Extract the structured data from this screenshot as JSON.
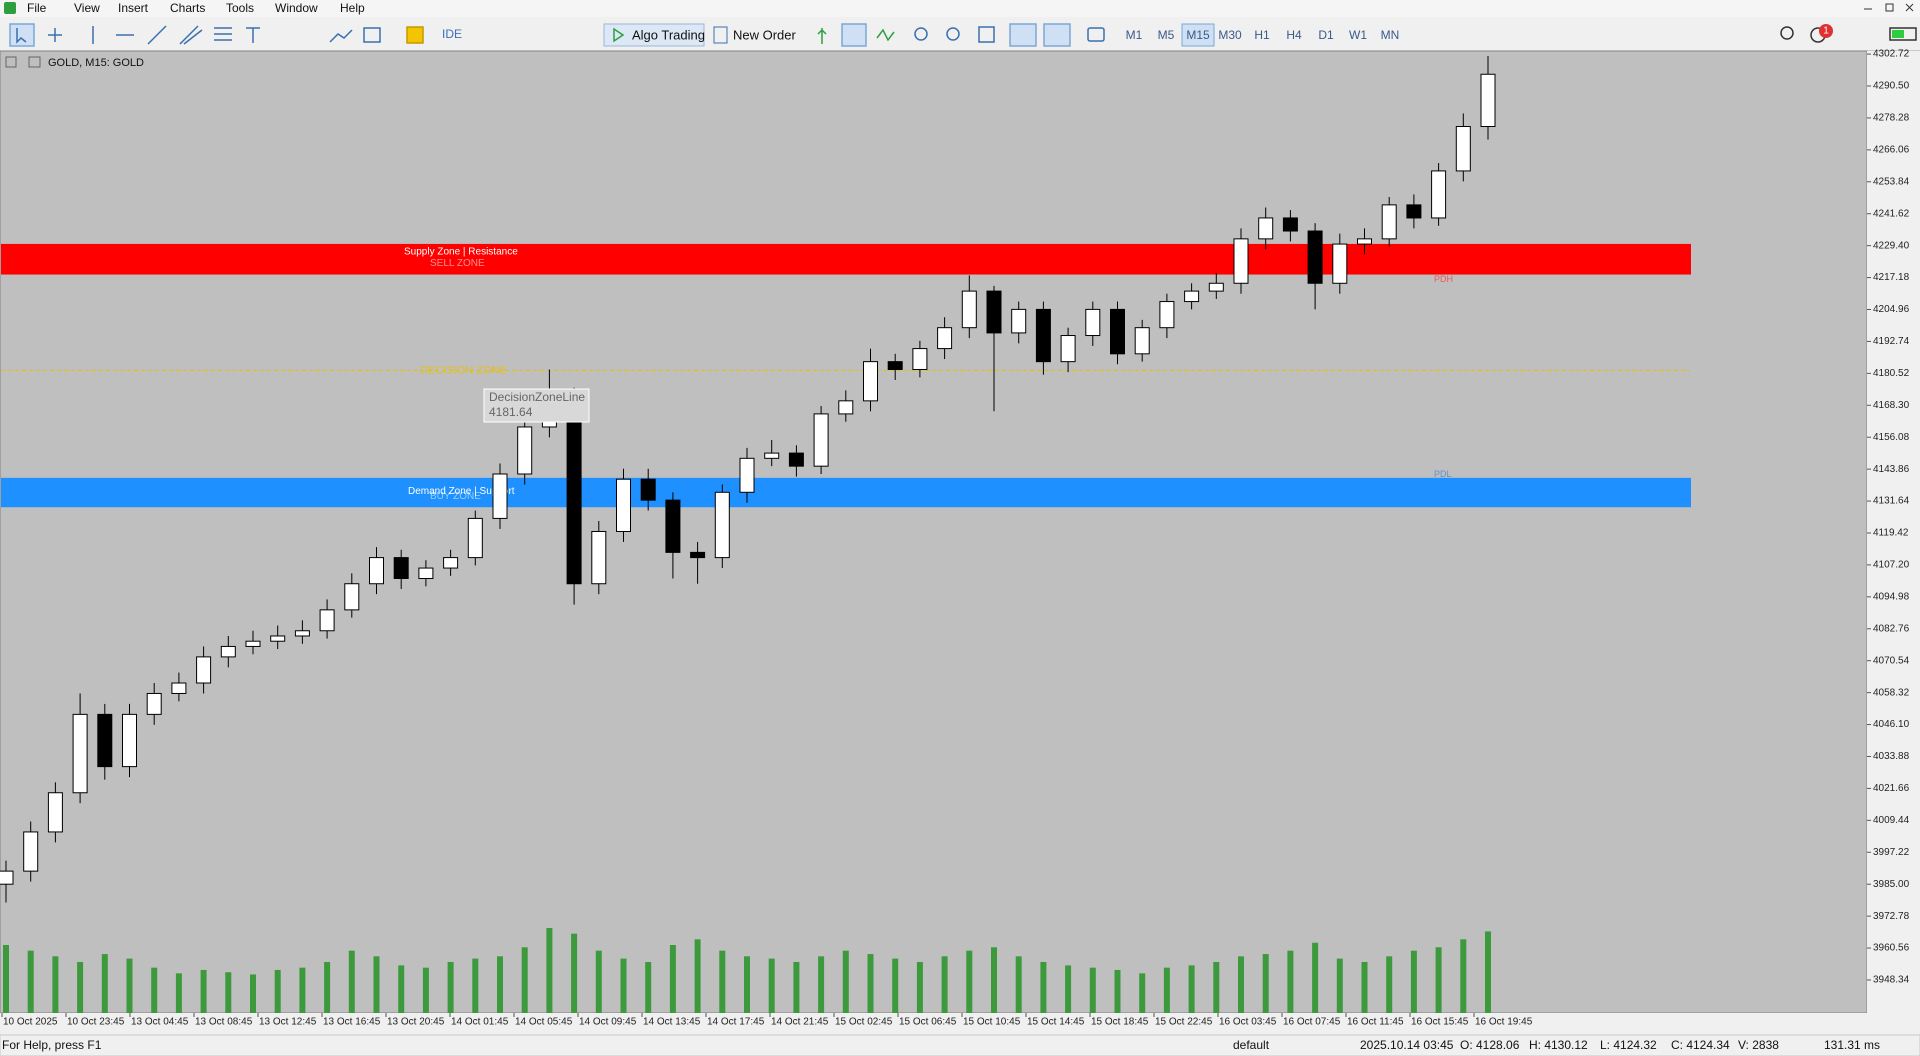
{
  "menu": [
    "File",
    "View",
    "Insert",
    "Charts",
    "Tools",
    "Window",
    "Help"
  ],
  "toolbar": {
    "ide": "IDE",
    "algo_trading": "Algo Trading",
    "new_order": "New Order",
    "timeframes": [
      "M1",
      "M5",
      "M15",
      "M30",
      "H1",
      "H4",
      "D1",
      "W1",
      "MN"
    ],
    "active_timeframe": "M15",
    "notification_count": "1"
  },
  "chart_header": "GOLD, M15:  GOLD",
  "chart_data": {
    "type": "candlestick",
    "ylim": [
      3935.7,
      4303.9
    ],
    "yticks": [
      4302.72,
      {
        "value": 4290.5,
        "label": "4290.50"
      },
      4278.28,
      4266.06,
      4253.84,
      4241.62,
      {
        "value": 4229.4,
        "label": "4229.40"
      },
      4217.18,
      4204.96,
      4192.74,
      4180.52,
      {
        "value": 4168.3,
        "label": "4168.30"
      },
      4156.08,
      4143.86,
      4131.64,
      4119.42,
      {
        "value": 4107.2,
        "label": "4107.20"
      },
      4094.98,
      4082.76,
      4070.54,
      4058.32,
      {
        "value": 4046.1,
        "label": "4046.10"
      },
      4033.88,
      4021.66,
      4009.44,
      3997.22,
      {
        "value": 3985,
        "label": "3985.00"
      },
      3972.78,
      3960.56,
      3948.34
    ],
    "time_labels": [
      "10 Oct 2025",
      "10 Oct 23:45",
      "13 Oct 04:45",
      "13 Oct 08:45",
      "13 Oct 12:45",
      "13 Oct 16:45",
      "13 Oct 20:45",
      "14 Oct 01:45",
      "14 Oct 05:45",
      "14 Oct 09:45",
      "14 Oct 13:45",
      "14 Oct 17:45",
      "14 Oct 21:45",
      "15 Oct 02:45",
      "15 Oct 06:45",
      "15 Oct 10:45",
      "15 Oct 14:45",
      "15 Oct 18:45",
      "15 Oct 22:45",
      "16 Oct 03:45",
      "16 Oct 07:45",
      "16 Oct 11:45",
      "16 Oct 15:45",
      "16 Oct 19:45"
    ],
    "grid": false,
    "up_color": "#ffffff",
    "down_color": "#000000",
    "volume_color": "#3c9a3c",
    "open": [
      3985,
      3990,
      4005,
      4020,
      4050,
      4030,
      4050,
      4058,
      4062,
      4072,
      4076,
      4078,
      4080,
      4082,
      4090,
      4100,
      4110,
      4102,
      4106,
      4110,
      4125,
      4142,
      4160,
      4172,
      4100,
      4120,
      4140,
      4132,
      4112,
      4110,
      4135,
      4148,
      4150,
      4145,
      4165,
      4170,
      4185,
      4182,
      4190,
      4198,
      4212,
      4196,
      4205,
      4185,
      4195,
      4205,
      4188,
      4198,
      4208,
      4212,
      4215,
      4232,
      4240,
      4235,
      4215,
      4230,
      4232,
      4245,
      4240,
      4258,
      4275
    ],
    "high": [
      3994,
      4009,
      4024,
      4058,
      4054,
      4054,
      4062,
      4066,
      4076,
      4080,
      4082,
      4084,
      4086,
      4094,
      4104,
      4114,
      4113,
      4109,
      4113,
      4128,
      4146,
      4164,
      4182,
      4175,
      4124,
      4144,
      4144,
      4135,
      4116,
      4138,
      4152,
      4155,
      4153,
      4168,
      4174,
      4190,
      4188,
      4193,
      4202,
      4218,
      4214,
      4208,
      4208,
      4198,
      4208,
      4208,
      4201,
      4211,
      4215,
      4219,
      4236,
      4244,
      4243,
      4238,
      4234,
      4236,
      4248,
      4249,
      4261,
      4280,
      4302
    ],
    "low": [
      3978,
      3986,
      4001,
      4016,
      4025,
      4026,
      4046,
      4055,
      4058,
      4068,
      4073,
      4075,
      4077,
      4079,
      4087,
      4096,
      4098,
      4099,
      4103,
      4107,
      4121,
      4138,
      4156,
      4092,
      4096,
      4116,
      4128,
      4102,
      4100,
      4106,
      4131,
      4145,
      4141,
      4142,
      4162,
      4166,
      4178,
      4179,
      4186,
      4194,
      4166,
      4192,
      4180,
      4181,
      4191,
      4184,
      4185,
      4194,
      4205,
      4209,
      4211,
      4228,
      4231,
      4205,
      4211,
      4226,
      4229,
      4236,
      4237,
      4254,
      4270
    ],
    "close": [
      3990,
      4005,
      4020,
      4050,
      4030,
      4050,
      4058,
      4062,
      4072,
      4076,
      4078,
      4080,
      4082,
      4090,
      4100,
      4110,
      4102,
      4106,
      4110,
      4125,
      4142,
      4160,
      4172,
      4100,
      4120,
      4140,
      4132,
      4112,
      4110,
      4135,
      4148,
      4150,
      4145,
      4165,
      4170,
      4185,
      4182,
      4190,
      4198,
      4212,
      4196,
      4205,
      4185,
      4195,
      4205,
      4188,
      4198,
      4208,
      4212,
      4215,
      4232,
      4240,
      4235,
      4215,
      4230,
      4232,
      4245,
      4240,
      4258,
      4275,
      4295
    ],
    "volume": [
      60,
      55,
      50,
      45,
      52,
      48,
      40,
      35,
      38,
      36,
      34,
      38,
      40,
      45,
      55,
      50,
      42,
      40,
      45,
      48,
      50,
      58,
      75,
      70,
      55,
      48,
      45,
      60,
      65,
      55,
      50,
      48,
      45,
      50,
      55,
      52,
      48,
      45,
      50,
      55,
      58,
      50,
      45,
      42,
      40,
      38,
      35,
      40,
      42,
      45,
      50,
      52,
      55,
      62,
      48,
      45,
      50,
      55,
      58,
      65,
      72
    ],
    "zones": [
      {
        "label": "Supply Zone | Resistance",
        "sub_label": "SELL ZONE",
        "top": 4230.06,
        "bottom": 4218.34,
        "color": "#ff0000",
        "level_label": "PDH",
        "level_color": "#ff3030"
      },
      {
        "label": "Demand Zone | Support",
        "sub_label": "BUY ZONE",
        "top": 4140.53,
        "bottom": 4129.28,
        "color": "#1e90ff",
        "level_label": "PDL",
        "level_color": "#3a7bd5"
      }
    ],
    "decision_line": {
      "value": 4181.64,
      "label": "DECISION ZONE",
      "name": "DecisionZoneLine",
      "color": "#e8c000"
    }
  },
  "status_bar": {
    "help": "For Help, press F1",
    "profile": "default",
    "time": "2025.10.14 03:45",
    "open": "O: 4128.06",
    "high": "H: 4130.12",
    "low": "L: 4124.32",
    "close": "C: 4124.34",
    "volume": "V: 2838",
    "ping": "131.31 ms"
  }
}
